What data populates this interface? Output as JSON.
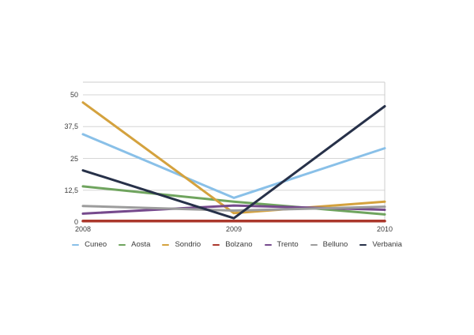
{
  "chart_data": {
    "type": "line",
    "x": [
      "2008",
      "2009",
      "2010"
    ],
    "y_ticks": [
      {
        "label": "0",
        "value": 0
      },
      {
        "label": "12,5",
        "value": 12.5
      },
      {
        "label": "25",
        "value": 25
      },
      {
        "label": "37,5",
        "value": 37.5
      },
      {
        "label": "50",
        "value": 50
      }
    ],
    "ylim": [
      0,
      50
    ],
    "grid": true,
    "legend_position": "bottom",
    "series": [
      {
        "name": "Cuneo",
        "color": "#89c0e8",
        "values": [
          34.5,
          9.5,
          29
        ]
      },
      {
        "name": "Aosta",
        "color": "#6fa45e",
        "values": [
          14,
          8,
          3
        ]
      },
      {
        "name": "Sondrio",
        "color": "#d4a23e",
        "values": [
          47,
          3.5,
          8
        ]
      },
      {
        "name": "Bolzano",
        "color": "#ab382c",
        "values": [
          0.4,
          0.4,
          0.4
        ]
      },
      {
        "name": "Trento",
        "color": "#764a8d",
        "values": [
          3.3,
          6.5,
          4.8
        ]
      },
      {
        "name": "Belluno",
        "color": "#9c9c9c",
        "values": [
          6.3,
          4.5,
          6
        ]
      },
      {
        "name": "Verbania",
        "color": "#273149",
        "values": [
          20.3,
          1.5,
          45.5
        ]
      }
    ]
  },
  "colors": {
    "grid": "#d6d6d6",
    "frame_border": "#cccccc",
    "tick_text": "#3c3c3c",
    "background": "#ffffff"
  }
}
